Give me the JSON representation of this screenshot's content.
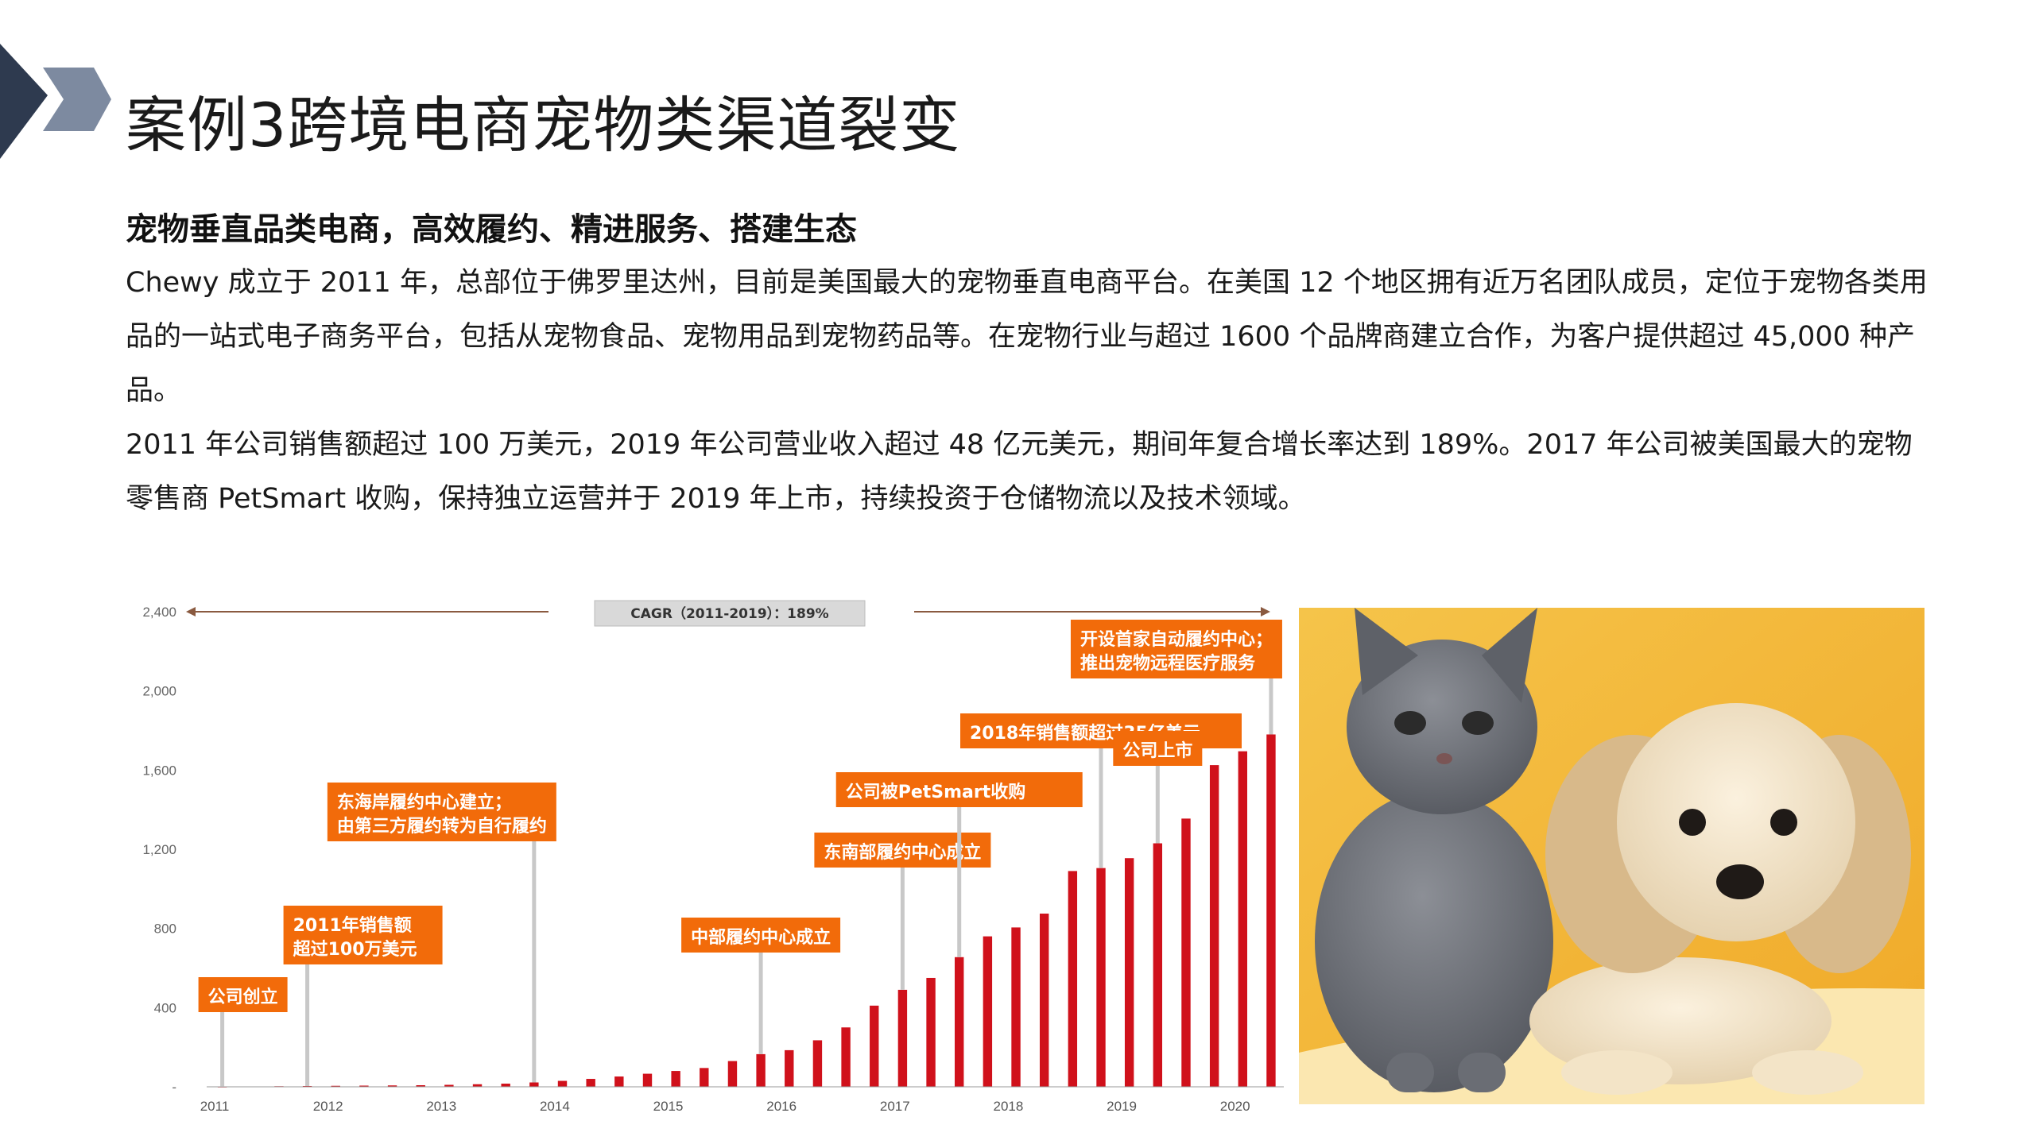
{
  "slide": {
    "title": "案例3跨境电商宠物类渠道裂变",
    "subtitle": "宠物垂直品类电商，高效履约、精进服务、搭建生态",
    "paragraph1": "Chewy 成立于 2011 年，总部位于佛罗里达州，目前是美国最大的宠物垂直电商平台。在美国 12 个地区拥有近万名团队成员，定位于宠物各类用品的一站式电子商务平台，包括从宠物食品、宠物用品到宠物药品等。在宠物行业与超过 1600 个品牌商建立合作，为客户提供超过 45,000 种产品。",
    "paragraph2": "2011 年公司销售额超过 100 万美元，2019 年公司营业收入超过 48 亿元美元，期间年复合增长率达到 189%。2017 年公司被美国最大的宠物零售商 PetSmart 收购，保持独立运营并于 2019 年上市，持续投资于仓储物流以及技术领域。"
  },
  "colors": {
    "accent_dark": "#2e3a4f",
    "accent_light": "#7d8aa0",
    "bar_red": "#d0111b",
    "callout_orange": "#f26b0a"
  },
  "chart_data": {
    "type": "bar",
    "title": "",
    "xlabel": "",
    "ylabel": "",
    "ylim": [
      0,
      2400
    ],
    "yticks": [
      "2,400",
      "2,000",
      "1,600",
      "1,200",
      "800",
      "400",
      "-"
    ],
    "year_labels": [
      "2011",
      "2012",
      "2013",
      "2014",
      "2015",
      "2016",
      "2017",
      "2018",
      "2019",
      "2020"
    ],
    "cagr_label": "CAGR（2011-2019）：189%",
    "values": [
      1,
      2,
      3,
      4,
      5,
      6,
      7,
      8,
      10,
      13,
      16,
      22,
      30,
      40,
      52,
      66,
      80,
      95,
      130,
      165,
      185,
      235,
      300,
      410,
      490,
      550,
      655,
      760,
      805,
      875,
      1090,
      1105,
      1155,
      1230,
      1355,
      1625,
      1695,
      1780
    ],
    "annotations": [
      {
        "text": [
          "公司创立"
        ],
        "bar": 0
      },
      {
        "text": [
          "2011年销售额",
          "超过100万美元"
        ],
        "bar": 3
      },
      {
        "text": [
          "东海岸履约中心建立；",
          "由第三方履约转为自行履约"
        ],
        "bar": 11
      },
      {
        "text": [
          "中部履约中心成立"
        ],
        "bar": 19
      },
      {
        "text": [
          "东南部履约中心成立"
        ],
        "bar": 24
      },
      {
        "text": [
          "公司被PetSmart收购"
        ],
        "bar": 26
      },
      {
        "text": [
          "2018年销售额超过35亿美元"
        ],
        "bar": 31
      },
      {
        "text": [
          "公司上市"
        ],
        "bar": 33
      },
      {
        "text": [
          "开设首家自动履约中心；",
          "推出宠物远程医疗服务"
        ],
        "bar": 37
      }
    ]
  },
  "photo": {
    "icon": "kitten-and-puppy-photo"
  }
}
